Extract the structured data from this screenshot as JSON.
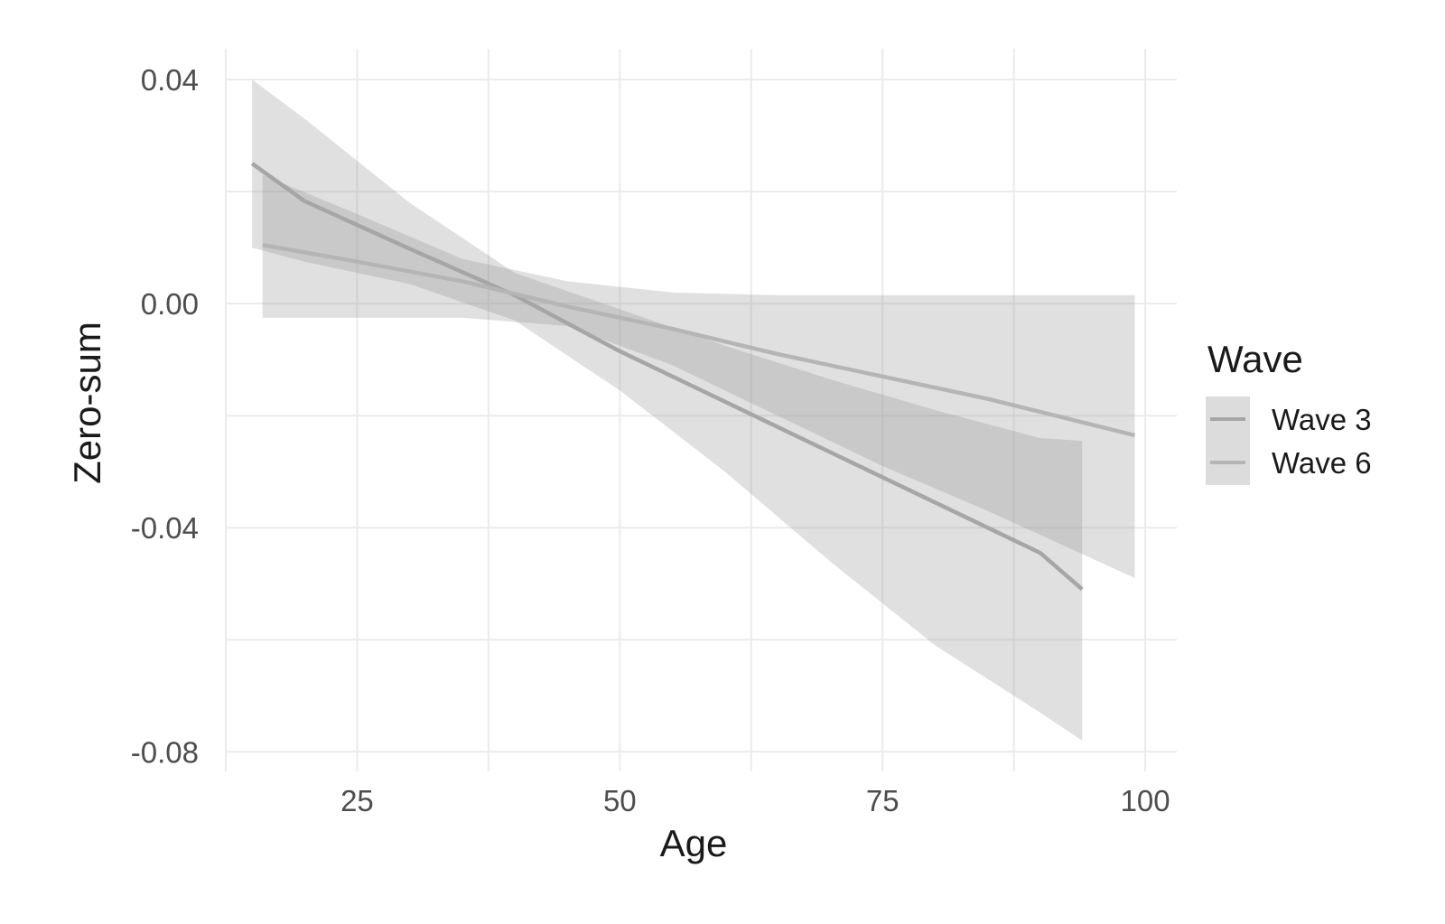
{
  "chart_data": {
    "type": "line",
    "xlabel": "Age",
    "ylabel": "Zero-sum",
    "xlim": [
      12.5,
      103
    ],
    "ylim": [
      -0.0835,
      0.0455
    ],
    "x_ticks": [
      25,
      50,
      75,
      100
    ],
    "x_tick_labels": [
      "25",
      "50",
      "75",
      "100"
    ],
    "y_ticks": [
      0.04,
      0.0,
      -0.04,
      -0.08
    ],
    "y_tick_labels": [
      "0.04",
      "0.00",
      "-0.04",
      "-0.08"
    ],
    "grid": true,
    "legend": {
      "title": "Wave",
      "position": "right",
      "entries": [
        "Wave 3",
        "Wave 6"
      ]
    },
    "series": [
      {
        "name": "Wave 3",
        "color": "#a6a6a6",
        "x": [
          15,
          20,
          30,
          40,
          50,
          60,
          70,
          80,
          90,
          94
        ],
        "y": [
          0.025,
          0.0183,
          0.0098,
          0.0015,
          -0.0085,
          -0.0175,
          -0.0265,
          -0.0355,
          -0.0445,
          -0.051
        ],
        "ci_lower": [
          0.01,
          0.0075,
          0.0035,
          -0.003,
          -0.0155,
          -0.03,
          -0.046,
          -0.061,
          -0.073,
          -0.078
        ],
        "ci_upper": [
          0.04,
          0.033,
          0.018,
          0.0055,
          -0.001,
          -0.0075,
          -0.0135,
          -0.019,
          -0.024,
          -0.0245
        ]
      },
      {
        "name": "Wave 6",
        "color": "#b5b5b5",
        "x": [
          16,
          25,
          35,
          45,
          55,
          65,
          75,
          85,
          99
        ],
        "y": [
          0.0105,
          0.0075,
          0.004,
          -0.0005,
          -0.0045,
          -0.009,
          -0.013,
          -0.017,
          -0.0235
        ],
        "ci_lower": [
          -0.0025,
          -0.0025,
          -0.0025,
          -0.004,
          -0.011,
          -0.02,
          -0.029,
          -0.037,
          -0.049
        ],
        "ci_upper": [
          0.023,
          0.016,
          0.008,
          0.004,
          0.002,
          0.0015,
          0.0015,
          0.0015,
          0.0015
        ]
      }
    ]
  }
}
